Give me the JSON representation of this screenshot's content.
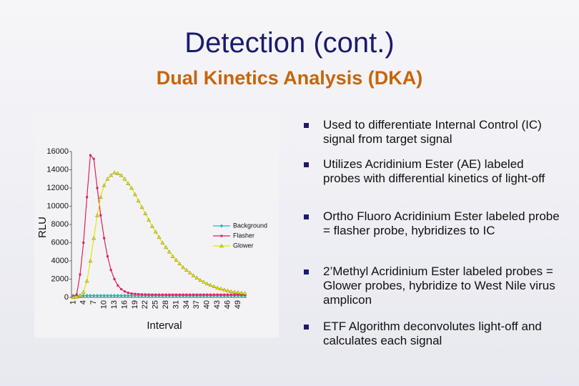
{
  "title": "Detection (cont.)",
  "subtitle": "Dual Kinetics Analysis (DKA)",
  "bullets": [
    "Used to differentiate Internal Control (IC) signal from target signal",
    "Utilizes Acridinium Ester (AE) labeled probes with differential kinetics of light-off",
    "Ortho Fluoro Acridinium Ester labeled probe = flasher probe, hybridizes to IC",
    "2’Methyl Acridinium Ester labeled probes = Glower probes, hybridize to West Nile virus amplicon",
    "ETF Algorithm deconvolutes light-off and calculates each signal"
  ],
  "chart_data": {
    "type": "line",
    "x_label": "Interval",
    "y_label": "RLU",
    "categories": [
      1,
      null,
      null,
      4,
      null,
      null,
      7,
      null,
      null,
      10,
      null,
      null,
      13,
      null,
      null,
      16,
      null,
      null,
      19,
      null,
      null,
      22,
      null,
      null,
      25,
      null,
      null,
      28,
      null,
      null,
      31,
      null,
      null,
      34,
      null,
      null,
      37,
      null,
      null,
      40,
      null,
      null,
      43,
      null,
      null,
      46,
      null,
      null,
      49,
      null,
      null
    ],
    "ylim": [
      0,
      16000
    ],
    "yticks": [
      0,
      2000,
      4000,
      6000,
      8000,
      10000,
      12000,
      14000,
      16000
    ],
    "legend": "right",
    "series": [
      {
        "name": "Background",
        "color": "#2cb5b5",
        "marker": "diamond",
        "values": [
          200,
          200,
          200,
          200,
          200,
          200,
          200,
          200,
          200,
          200,
          200,
          200,
          200,
          200,
          200,
          200,
          200,
          200,
          200,
          200,
          200,
          200,
          200,
          200,
          200,
          200,
          200,
          200,
          200,
          200,
          200,
          200,
          200,
          200,
          200,
          200,
          200,
          200,
          200,
          200,
          200,
          200,
          200,
          200,
          200,
          200,
          200,
          200,
          200,
          200,
          200
        ]
      },
      {
        "name": "Flasher",
        "color": "#e0205a",
        "marker": "square",
        "values": [
          100,
          300,
          2500,
          6000,
          11000,
          15600,
          15200,
          12000,
          9000,
          6500,
          4500,
          3000,
          2000,
          1300,
          900,
          650,
          500,
          420,
          380,
          350,
          330,
          320,
          310,
          300,
          300,
          300,
          300,
          300,
          300,
          300,
          300,
          300,
          300,
          300,
          300,
          300,
          300,
          300,
          300,
          300,
          300,
          300,
          300,
          300,
          300,
          300,
          300,
          300,
          300,
          300,
          300
        ]
      },
      {
        "name": "Glower",
        "color": "#e6e600",
        "marker": "triangle",
        "values": [
          0,
          50,
          200,
          600,
          1800,
          4000,
          6500,
          9000,
          11000,
          12300,
          13000,
          13400,
          13700,
          13600,
          13400,
          13000,
          12500,
          12000,
          11300,
          10600,
          9900,
          9200,
          8500,
          7800,
          7200,
          6600,
          6000,
          5500,
          5000,
          4500,
          4100,
          3700,
          3300,
          3000,
          2700,
          2400,
          2150,
          1900,
          1700,
          1500,
          1350,
          1200,
          1050,
          950,
          850,
          750,
          650,
          600,
          550,
          500,
          450
        ]
      }
    ]
  }
}
